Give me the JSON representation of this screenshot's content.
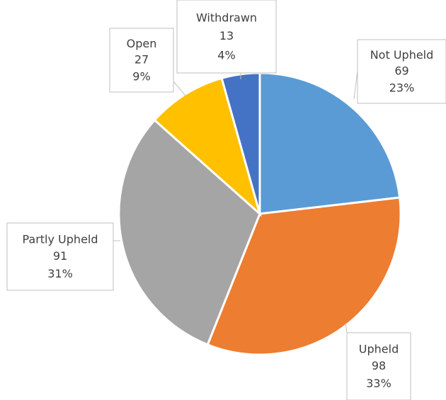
{
  "chart_data": {
    "type": "pie",
    "categories": [
      "Not Upheld",
      "Upheld",
      "Partly Upheld",
      "Open",
      "Withdrawn"
    ],
    "values": [
      69,
      98,
      91,
      27,
      13
    ],
    "percent_labels": [
      "23%",
      "33%",
      "31%",
      "9%",
      "4%"
    ],
    "colors": [
      "#5b9bd5",
      "#ed7d31",
      "#a5a5a5",
      "#ffc000",
      "#4472c4"
    ]
  }
}
